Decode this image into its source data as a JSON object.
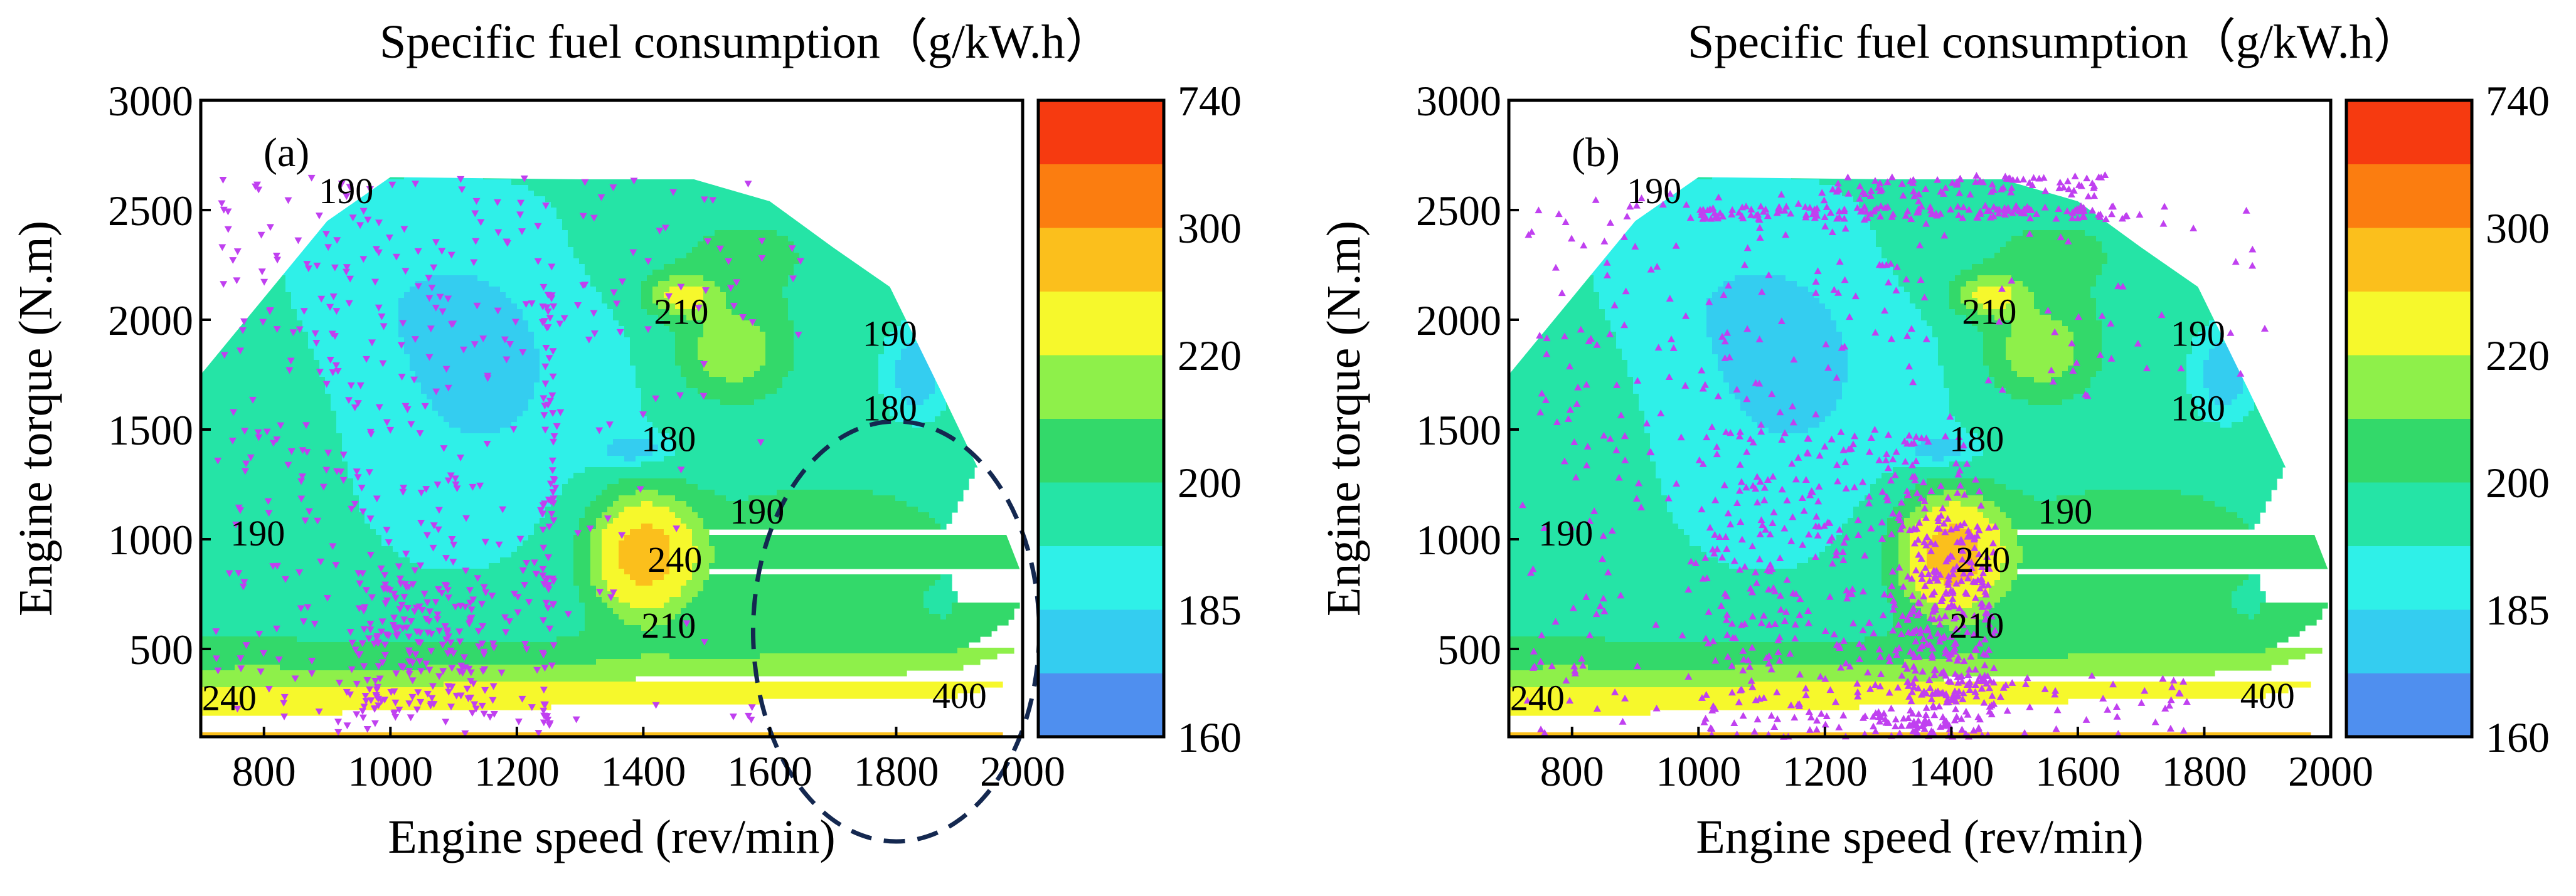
{
  "figure": {
    "colorbar_title": "Specific fuel consumption（g/kW.h）",
    "xlabel": "Engine speed (rev/min)",
    "ylabel": "Engine torque (N.m)"
  },
  "chart_data": [
    {
      "type": "contour",
      "panel_label": "(a)",
      "title": "Specific fuel consumption（g/kW.h）",
      "xlabel": "Engine speed (rev/min)",
      "ylabel": "Engine torque (N.m)",
      "xlim": [
        700,
        2000
      ],
      "ylim": [
        100,
        3000
      ],
      "xticks": [
        800,
        1000,
        1200,
        1400,
        1600,
        1800,
        2000
      ],
      "yticks": [
        500,
        1000,
        1500,
        2000,
        2500,
        3000
      ],
      "colorbar": {
        "tick_labels": [
          "160",
          "185",
          "200",
          "220",
          "300",
          "740"
        ],
        "levels": [
          160,
          180,
          185,
          190,
          200,
          210,
          220,
          240,
          300,
          400,
          740
        ],
        "colors": [
          "#4f8fef",
          "#34cdf0",
          "#2ff0e8",
          "#25e4a6",
          "#33d96a",
          "#8ef04a",
          "#f6f82c",
          "#fbbf1c",
          "#fb7d10",
          "#f63a10"
        ]
      },
      "contour_labels": [
        {
          "text": "190",
          "x": 930,
          "y": 2570
        },
        {
          "text": "210",
          "x": 1460,
          "y": 2020
        },
        {
          "text": "190",
          "x": 1790,
          "y": 1920
        },
        {
          "text": "180",
          "x": 1790,
          "y": 1580
        },
        {
          "text": "180",
          "x": 1440,
          "y": 1440
        },
        {
          "text": "190",
          "x": 790,
          "y": 1010
        },
        {
          "text": "240",
          "x": 1450,
          "y": 890
        },
        {
          "text": "190",
          "x": 1580,
          "y": 1110
        },
        {
          "text": "210",
          "x": 1440,
          "y": 590
        },
        {
          "text": "240",
          "x": 745,
          "y": 260
        },
        {
          "text": "400",
          "x": 1900,
          "y": 270
        }
      ],
      "operating_points": {
        "marker": "triangle-down",
        "color": "#c040f0",
        "clusters": [
          {
            "x_range": [
              720,
              1260
            ],
            "y_range": [
              100,
              2650
            ],
            "n": 380
          },
          {
            "x_range": [
              950,
              1150
            ],
            "y_range": [
              200,
              800
            ],
            "n": 160
          },
          {
            "x_range": [
              1240,
              1260
            ],
            "y_range": [
              150,
              2200
            ],
            "n": 70
          },
          {
            "x_range": [
              1260,
              1650
            ],
            "y_range": [
              1900,
              2650
            ],
            "n": 45
          },
          {
            "x_range": [
              1260,
              1600
            ],
            "y_range": [
              100,
              1800
            ],
            "n": 30
          }
        ]
      },
      "annotation": {
        "shape": "dashed-circle",
        "center": [
          1800,
          580
        ],
        "color": "#142850"
      }
    },
    {
      "type": "contour",
      "panel_label": "(b)",
      "title": "Specific fuel consumption（g/kW.h）",
      "xlabel": "Engine speed (rev/min)",
      "ylabel": "Engine torque (N.m)",
      "xlim": [
        700,
        2000
      ],
      "ylim": [
        100,
        3000
      ],
      "xticks": [
        800,
        1000,
        1200,
        1400,
        1600,
        1800,
        2000
      ],
      "yticks": [
        500,
        1000,
        1500,
        2000,
        2500,
        3000
      ],
      "colorbar": {
        "tick_labels": [
          "160",
          "185",
          "200",
          "220",
          "300",
          "740"
        ],
        "levels": [
          160,
          180,
          185,
          190,
          200,
          210,
          220,
          240,
          300,
          400,
          740
        ],
        "colors": [
          "#4f8fef",
          "#34cdf0",
          "#2ff0e8",
          "#25e4a6",
          "#33d96a",
          "#8ef04a",
          "#f6f82c",
          "#fbbf1c",
          "#fb7d10",
          "#f63a10"
        ]
      },
      "contour_labels": [
        {
          "text": "190",
          "x": 930,
          "y": 2570
        },
        {
          "text": "210",
          "x": 1460,
          "y": 2020
        },
        {
          "text": "190",
          "x": 1790,
          "y": 1920
        },
        {
          "text": "180",
          "x": 1790,
          "y": 1580
        },
        {
          "text": "180",
          "x": 1440,
          "y": 1440
        },
        {
          "text": "190",
          "x": 790,
          "y": 1010
        },
        {
          "text": "240",
          "x": 1450,
          "y": 890
        },
        {
          "text": "190",
          "x": 1580,
          "y": 1110
        },
        {
          "text": "210",
          "x": 1440,
          "y": 590
        },
        {
          "text": "240",
          "x": 745,
          "y": 260
        },
        {
          "text": "400",
          "x": 1900,
          "y": 270
        }
      ],
      "operating_points": {
        "marker": "triangle-up",
        "color": "#c040f0",
        "clusters": [
          {
            "x_range": [
              720,
              1400
            ],
            "y_range": [
              100,
              2600
            ],
            "n": 330
          },
          {
            "x_range": [
              1000,
              1450
            ],
            "y_range": [
              100,
              1500
            ],
            "n": 350
          },
          {
            "x_range": [
              1330,
              1470
            ],
            "y_range": [
              100,
              1100
            ],
            "n": 260
          },
          {
            "x_range": [
              1000,
              1700
            ],
            "y_range": [
              2460,
              2520
            ],
            "n": 150
          },
          {
            "x_range": [
              1200,
              1650
            ],
            "y_range": [
              2560,
              2660
            ],
            "n": 80
          },
          {
            "x_range": [
              1200,
              1800
            ],
            "y_range": [
              100,
              400
            ],
            "n": 60
          },
          {
            "x_range": [
              1450,
              1900
            ],
            "y_range": [
              1500,
              2600
            ],
            "n": 40
          }
        ]
      }
    }
  ]
}
